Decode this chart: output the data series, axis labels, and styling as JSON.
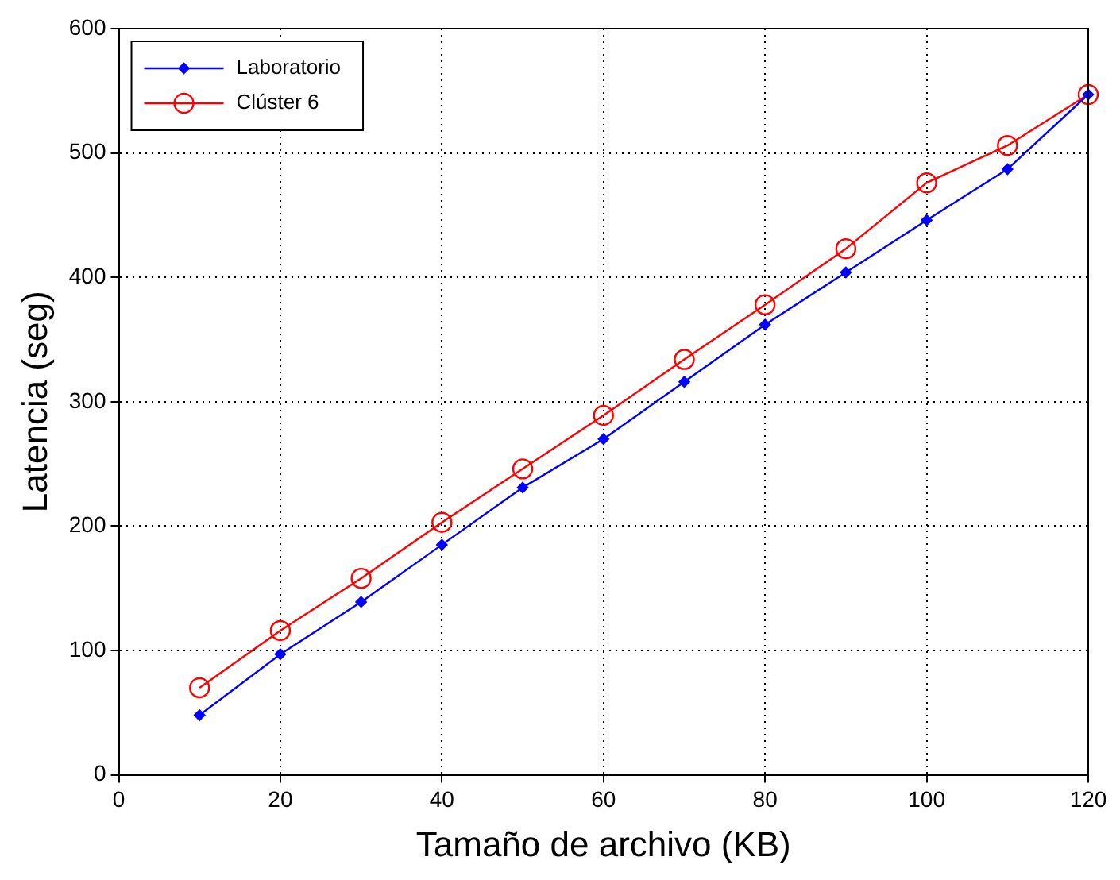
{
  "chart_data": {
    "type": "line",
    "xlabel": "Tamaño de archivo (KB)",
    "ylabel": "Latencia (seg)",
    "x": [
      10,
      20,
      30,
      40,
      50,
      60,
      70,
      80,
      90,
      100,
      110,
      120
    ],
    "series": [
      {
        "name": "Laboratorio",
        "color": "#0000ff",
        "marker": "diamond",
        "values": [
          48,
          97,
          139,
          185,
          231,
          270,
          316,
          362,
          404,
          446,
          487,
          547
        ]
      },
      {
        "name": "Clúster 6",
        "color": "#ff0000",
        "marker": "circle",
        "values": [
          70,
          116,
          158,
          203,
          246,
          289,
          334,
          378,
          423,
          476,
          506,
          547
        ]
      }
    ],
    "xlim": [
      0,
      120
    ],
    "xticks": [
      0,
      20,
      40,
      60,
      80,
      100,
      120
    ],
    "ylim": [
      0,
      600
    ],
    "yticks": [
      0,
      100,
      200,
      300,
      400,
      500,
      600
    ],
    "grid": true,
    "legend": "top left",
    "line_style": "solid"
  }
}
